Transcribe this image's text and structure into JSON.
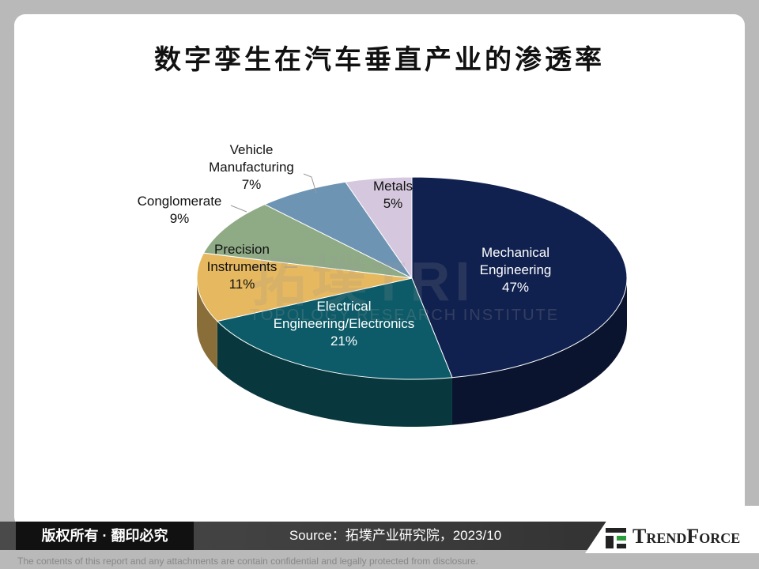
{
  "chart_data": {
    "type": "pie3d",
    "title": "数字孪生在汽车垂直产业的渗透率",
    "categories": [
      "Mechanical\nEngineering",
      "Electrical\nEngineering/Electronics",
      "Precision\nInstruments",
      "Conglomerate",
      "Vehicle\nManufacturing",
      "Metals"
    ],
    "values": [
      47,
      21,
      11,
      9,
      7,
      5
    ],
    "value_labels": [
      "47%",
      "21%",
      "11%",
      "9%",
      "7%",
      "5%"
    ],
    "colors": [
      "#11214f",
      "#0d5b68",
      "#e6b85f",
      "#8fab86",
      "#6e94b4",
      "#d5c7dd"
    ]
  },
  "watermark": {
    "logo": "拓墣TRI",
    "name": "TOPOLOGY RESEARCH INSTITUTE"
  },
  "footer": {
    "rights": "版权所有 · 翻印必究",
    "source": "Source：拓墣产业研究院，2023/10",
    "brand": "TrendForce",
    "disclaimer": "The contents of this report and any attachments are contain confidential and legally protected from disclosure."
  }
}
